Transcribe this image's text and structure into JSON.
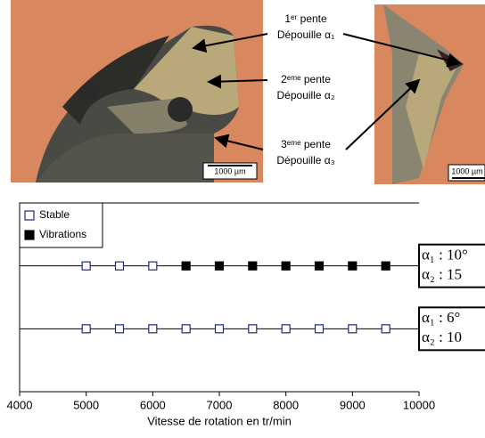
{
  "figure": {
    "annotations": [
      {
        "lines": [
          "1ᵉʳ pente",
          "Dépouille α₁"
        ]
      },
      {
        "lines": [
          "2ᵉᵐᵉ pente",
          "Dépouille α₂"
        ]
      },
      {
        "lines": [
          "3ᵉᵐᵉ pente",
          "Dépouille α₃"
        ]
      }
    ],
    "scale_bars": [
      "1000 µm",
      "1000 µm"
    ]
  },
  "chart_data": {
    "type": "scatter",
    "xlabel": "Vitesse de rotation en tr/min",
    "xlim": [
      4000,
      10000
    ],
    "xticks": [
      4000,
      5000,
      6000,
      7000,
      8000,
      9000,
      10000
    ],
    "ylim": [
      0,
      3
    ],
    "series": [
      {
        "name": "Stable",
        "color": "#1f2a7a",
        "filled": false,
        "x": [
          5000,
          5500,
          6000,
          5000,
          5500,
          6000,
          6500,
          7000,
          7500,
          8000,
          8500,
          9000,
          9500
        ],
        "y": [
          2,
          2,
          2,
          1,
          1,
          1,
          1,
          1,
          1,
          1,
          1,
          1,
          1
        ]
      },
      {
        "name": "Vibrations",
        "color": "#000000",
        "filled": true,
        "x": [
          6500,
          7000,
          7500,
          8000,
          8500,
          9000,
          9500
        ],
        "y": [
          2,
          2,
          2,
          2,
          2,
          2,
          2
        ]
      }
    ],
    "row_labels": [
      {
        "y": 2,
        "lines": [
          "α₁ : 10°",
          "α₂ : 15"
        ]
      },
      {
        "y": 1,
        "lines": [
          "α₁ : 6°",
          "α₂ : 10"
        ]
      }
    ]
  }
}
